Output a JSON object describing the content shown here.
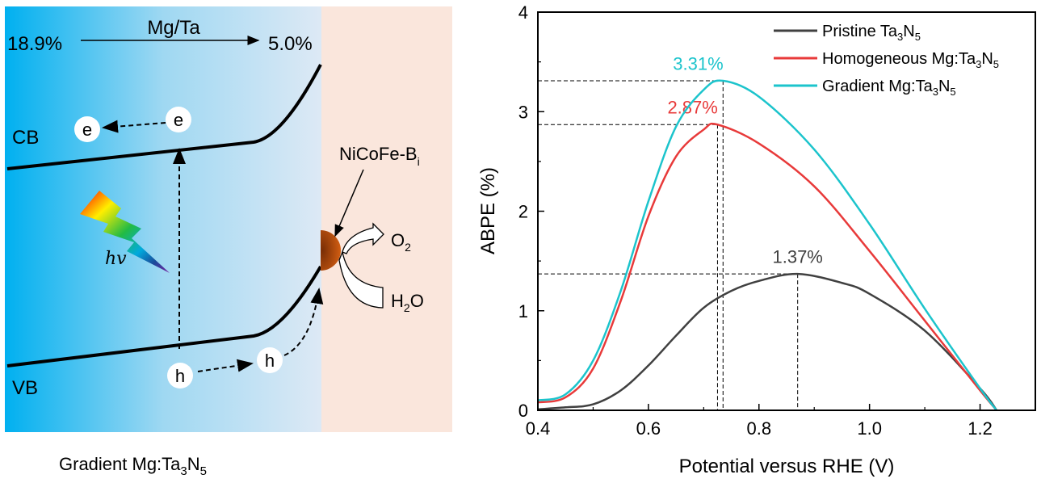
{
  "diagram": {
    "caption": {
      "main": "Gradient Mg:Ta",
      "sub1": "3",
      "mid": "N",
      "sub2": "5"
    },
    "ratio_label": "Mg/Ta",
    "ratio_start": "18.9%",
    "ratio_end": "5.0%",
    "cb_label": "CB",
    "vb_label": "VB",
    "electron": "e",
    "hole": "h",
    "photon": "hv",
    "catalyst": {
      "main": "NiCoFe-B",
      "sub": "i"
    },
    "product": {
      "main": "O",
      "sub": "2"
    },
    "reactant": {
      "main": "H",
      "sub": "2",
      "tail": "O"
    },
    "colors": {
      "bulk_left": "#00b0f0",
      "bulk_right": "#dde9f5",
      "electrolyte": "#fae6dc",
      "catalyst": "#c55a11"
    }
  },
  "chart_data": {
    "type": "line",
    "xlabel": "Potential versus RHE (V)",
    "ylabel": "ABPE (%)",
    "xlim": [
      0.4,
      1.3
    ],
    "ylim": [
      0,
      4
    ],
    "xticks": [
      "0.4",
      "0.6",
      "0.8",
      "1.0",
      "1.2"
    ],
    "yticks": [
      "0",
      "1",
      "2",
      "3",
      "4"
    ],
    "grid": false,
    "legend_position": "top-right",
    "series": [
      {
        "name": "Pristine Ta",
        "name_sub1": "3",
        "name_mid": "N",
        "name_sub2": "5",
        "color": "#404040",
        "peak": {
          "x": 0.87,
          "y": 1.37,
          "label": "1.37%"
        },
        "x": [
          0.4,
          0.45,
          0.5,
          0.55,
          0.6,
          0.65,
          0.7,
          0.75,
          0.8,
          0.87,
          0.95,
          1.0,
          1.1,
          1.2,
          1.23
        ],
        "y": [
          0.01,
          0.03,
          0.06,
          0.2,
          0.45,
          0.75,
          1.03,
          1.2,
          1.3,
          1.37,
          1.28,
          1.17,
          0.8,
          0.22,
          0
        ]
      },
      {
        "name": "Homogeneous Mg:Ta",
        "name_sub1": "3",
        "name_mid": "N",
        "name_sub2": "5",
        "color": "#e83a3a",
        "peak": {
          "x": 0.725,
          "y": 2.87,
          "label": "2.87%"
        },
        "x": [
          0.4,
          0.45,
          0.5,
          0.55,
          0.6,
          0.65,
          0.7,
          0.725,
          0.8,
          0.9,
          1.0,
          1.1,
          1.2,
          1.23
        ],
        "y": [
          0.08,
          0.13,
          0.42,
          1.1,
          1.95,
          2.55,
          2.82,
          2.87,
          2.68,
          2.25,
          1.6,
          0.9,
          0.2,
          0
        ]
      },
      {
        "name": "Gradient Mg:Ta",
        "name_sub1": "3",
        "name_mid": "N",
        "name_sub2": "5",
        "color": "#1cc4cc",
        "peak": {
          "x": 0.735,
          "y": 3.31,
          "label": "3.31%"
        },
        "x": [
          0.4,
          0.45,
          0.5,
          0.55,
          0.6,
          0.65,
          0.7,
          0.735,
          0.8,
          0.9,
          1.0,
          1.1,
          1.2,
          1.23
        ],
        "y": [
          0.1,
          0.16,
          0.5,
          1.2,
          2.1,
          2.85,
          3.22,
          3.31,
          3.15,
          2.62,
          1.87,
          1.02,
          0.22,
          0
        ]
      }
    ]
  }
}
